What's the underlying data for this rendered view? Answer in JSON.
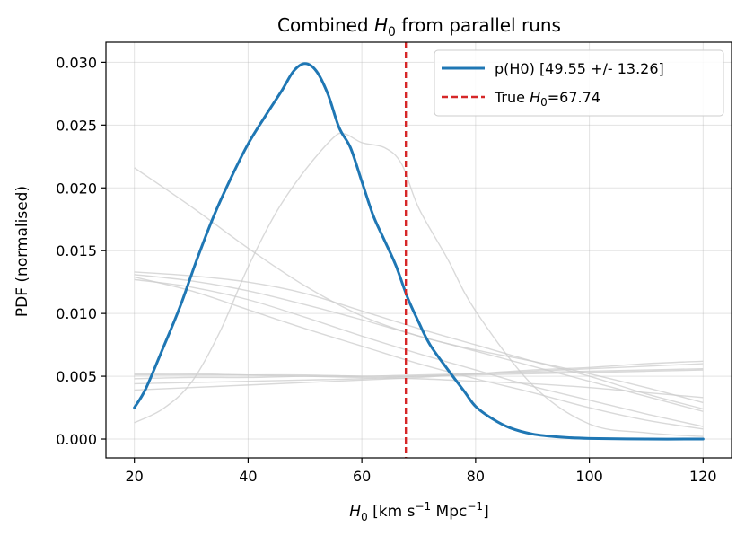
{
  "chart_data": {
    "type": "line",
    "title": {
      "pre": "Combined ",
      "sym": "H",
      "sub": "0",
      "post": " from parallel runs"
    },
    "xlabel": {
      "sym": "H",
      "sub": "0",
      "unit_a": " [km s",
      "sup_a": "−1",
      "unit_b": " Mpc",
      "sup_b": "−1",
      "unit_c": "]"
    },
    "ylabel": "PDF (normalised)",
    "xlim": [
      15,
      125
    ],
    "ylim": [
      -0.0015,
      0.0316
    ],
    "xticks": [
      20,
      40,
      60,
      80,
      100,
      120
    ],
    "xtick_labels": [
      "20",
      "40",
      "60",
      "80",
      "100",
      "120"
    ],
    "yticks": [
      0.0,
      0.005,
      0.01,
      0.015,
      0.02,
      0.025,
      0.03
    ],
    "ytick_labels": [
      "0.000",
      "0.005",
      "0.010",
      "0.015",
      "0.020",
      "0.025",
      "0.030"
    ],
    "grid": true,
    "legend_position": "top-right",
    "colors": {
      "main": "#1f77b4",
      "truth": "#d62728",
      "runs": "#cccccc"
    },
    "main_series": {
      "name": "p(H0) [49.55 +/- 13.26]",
      "x": [
        20,
        22,
        25,
        28,
        31,
        34,
        37,
        40,
        43,
        46,
        48,
        50,
        52,
        54,
        56,
        58,
        60,
        62,
        64,
        66,
        68,
        70,
        72,
        75,
        78,
        80,
        83,
        86,
        90,
        95,
        100,
        110,
        120
      ],
      "y": [
        0.0025,
        0.004,
        0.0072,
        0.0105,
        0.0143,
        0.0178,
        0.0208,
        0.0235,
        0.0257,
        0.0278,
        0.0293,
        0.0299,
        0.0293,
        0.0275,
        0.0248,
        0.0232,
        0.0205,
        0.0178,
        0.0158,
        0.0138,
        0.0113,
        0.0093,
        0.0075,
        0.0056,
        0.0038,
        0.0026,
        0.0016,
        0.0009,
        0.0004,
        0.00015,
        5e-05,
        0.0,
        0.0
      ]
    },
    "truth_line": {
      "name_pre": "True ",
      "sym": "H",
      "sub": "0",
      "name_post": "=67.74",
      "x": 67.74
    },
    "runs": [
      {
        "x": [
          20,
          30,
          40,
          50,
          60,
          70,
          80,
          90,
          100,
          110,
          120
        ],
        "y": [
          0.0216,
          0.0185,
          0.0152,
          0.0122,
          0.0098,
          0.0082,
          0.0071,
          0.0062,
          0.0052,
          0.0041,
          0.0029
        ]
      },
      {
        "x": [
          20,
          30,
          40,
          50,
          60,
          70,
          80,
          90,
          100,
          110,
          120
        ],
        "y": [
          0.0133,
          0.013,
          0.0125,
          0.0116,
          0.0102,
          0.0088,
          0.0075,
          0.0062,
          0.005,
          0.0036,
          0.0024
        ]
      },
      {
        "x": [
          20,
          30,
          40,
          50,
          60,
          70,
          80,
          90,
          100,
          110,
          120
        ],
        "y": [
          0.0131,
          0.0126,
          0.0118,
          0.0107,
          0.0095,
          0.0082,
          0.007,
          0.0058,
          0.0046,
          0.0034,
          0.0022
        ]
      },
      {
        "x": [
          20,
          30,
          40,
          50,
          60,
          70,
          80,
          90,
          100,
          110,
          120
        ],
        "y": [
          0.0127,
          0.0121,
          0.0111,
          0.0097,
          0.0082,
          0.0068,
          0.0055,
          0.0042,
          0.0031,
          0.002,
          0.001
        ]
      },
      {
        "x": [
          20,
          30,
          40,
          50,
          60,
          70,
          80,
          90,
          100,
          110,
          120
        ],
        "y": [
          0.0129,
          0.0118,
          0.0103,
          0.0088,
          0.0074,
          0.006,
          0.0048,
          0.0037,
          0.0025,
          0.0015,
          0.0008
        ]
      },
      {
        "x": [
          20,
          25,
          30,
          35,
          40,
          45,
          50,
          55,
          57,
          60,
          64,
          67,
          70,
          75,
          80,
          90,
          100,
          110,
          120
        ],
        "y": [
          0.0013,
          0.0024,
          0.0045,
          0.0085,
          0.0137,
          0.0181,
          0.0214,
          0.024,
          0.0243,
          0.0236,
          0.0232,
          0.0219,
          0.0184,
          0.0144,
          0.0102,
          0.0043,
          0.0012,
          0.0005,
          0.0002
        ]
      },
      {
        "x": [
          20,
          30,
          40,
          50,
          60,
          70,
          80,
          90,
          100,
          110,
          120
        ],
        "y": [
          0.0051,
          0.0051,
          0.0051,
          0.0051,
          0.005,
          0.005,
          0.0051,
          0.0052,
          0.0053,
          0.0054,
          0.0055
        ]
      },
      {
        "x": [
          20,
          30,
          40,
          50,
          60,
          70,
          80,
          90,
          100,
          110,
          120
        ],
        "y": [
          0.0048,
          0.0049,
          0.0049,
          0.005,
          0.005,
          0.0051,
          0.0052,
          0.0053,
          0.0054,
          0.0055,
          0.0056
        ]
      },
      {
        "x": [
          20,
          30,
          40,
          50,
          60,
          70,
          80,
          90,
          100,
          110,
          120
        ],
        "y": [
          0.0044,
          0.0045,
          0.0046,
          0.0047,
          0.0048,
          0.005,
          0.0052,
          0.0054,
          0.0056,
          0.0058,
          0.006
        ]
      },
      {
        "x": [
          20,
          30,
          40,
          50,
          60,
          70,
          80,
          90,
          100,
          110,
          120
        ],
        "y": [
          0.0039,
          0.0041,
          0.0043,
          0.0045,
          0.0047,
          0.0049,
          0.0052,
          0.0055,
          0.0057,
          0.006,
          0.0062
        ]
      },
      {
        "x": [
          20,
          30,
          40,
          50,
          60,
          70,
          80,
          90,
          100,
          110,
          120
        ],
        "y": [
          0.0052,
          0.0052,
          0.0051,
          0.005,
          0.0049,
          0.0048,
          0.0046,
          0.0044,
          0.0041,
          0.0037,
          0.0033
        ]
      }
    ]
  }
}
